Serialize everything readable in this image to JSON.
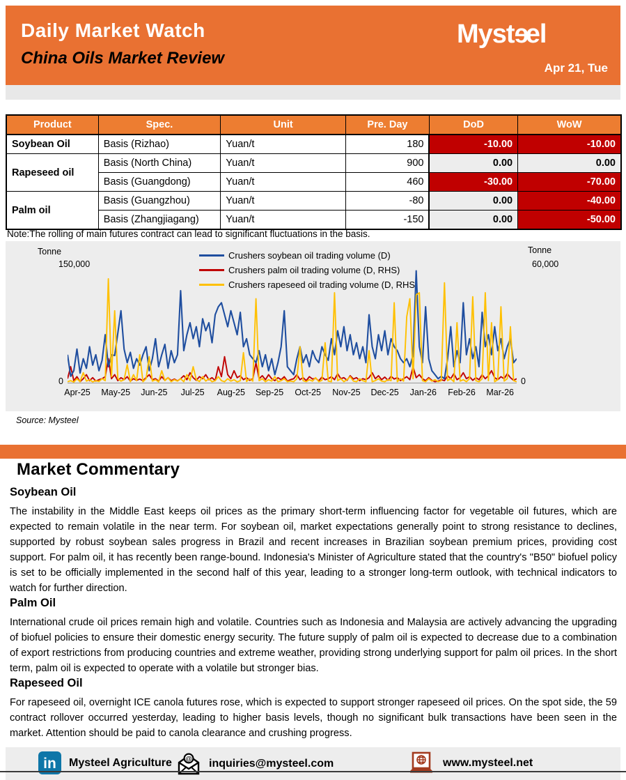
{
  "header": {
    "title": "Daily Market Watch",
    "subtitle": "China Oils Market Review",
    "date": "Apr 21, Tue",
    "brand": "Mysteel",
    "logo_parts": {
      "p1": "Myst",
      "e1": "ɘ",
      "e2": "e",
      "p2": "l"
    }
  },
  "table": {
    "headers": [
      "Product",
      "Spec.",
      "Unit",
      "Pre. Day",
      "DoD",
      "WoW"
    ],
    "rows": [
      {
        "product": "Soybean Oil",
        "spec": "Basis (Rizhao)",
        "unit": "Yuan/t",
        "pre_day": "180",
        "dod": "-10.00",
        "dod_state": "neg",
        "wow": "-10.00",
        "wow_state": "neg"
      },
      {
        "product": "Rapeseed oil",
        "spec": "Basis (North China)",
        "unit": "Yuan/t",
        "pre_day": "900",
        "dod": "0.00",
        "dod_state": "zero",
        "wow": "0.00",
        "wow_state": "zero"
      },
      {
        "spec": "Basis (Guangdong)",
        "unit": "Yuan/t",
        "pre_day": "460",
        "dod": "-30.00",
        "dod_state": "neg",
        "wow": "-70.00",
        "wow_state": "neg"
      },
      {
        "product": "Palm oil",
        "spec": "Basis (Guangzhou)",
        "unit": "Yuan/t",
        "pre_day": "-80",
        "dod": "0.00",
        "dod_state": "zero",
        "wow": "-40.00",
        "wow_state": "neg"
      },
      {
        "spec": "Basis (Zhangjiagang)",
        "unit": "Yuan/t",
        "pre_day": "-150",
        "dod": "0.00",
        "dod_state": "zero",
        "wow": "-50.00",
        "wow_state": "neg"
      }
    ]
  },
  "note": "Note:The rolling of main futures contract can lead to significant fluctuations in the basis.",
  "chart_data": {
    "type": "line",
    "left_axis": {
      "unit": "Tonne",
      "max": 150000,
      "max_label": "150,000",
      "zero_label": "0"
    },
    "right_axis": {
      "unit": "Tonne",
      "max": 60000,
      "max_label": "60,000",
      "zero_label": "0"
    },
    "categories": [
      "Apr-25",
      "May-25",
      "Jun-25",
      "Jul-25",
      "Aug-25",
      "Sep-25",
      "Oct-25",
      "Nov-25",
      "Dec-25",
      "Jan-26",
      "Feb-26",
      "Mar-26"
    ],
    "points_per_month": 12,
    "grid": false,
    "legend_position": "top-center",
    "series": [
      {
        "name": "Crushers soybean oil trading volume (D)",
        "axis": "left",
        "color": "#1F4E9F",
        "values": [
          35000,
          8000,
          15000,
          42000,
          12000,
          30000,
          18000,
          45000,
          22000,
          35000,
          15000,
          28000,
          60000,
          20000,
          35000,
          34000,
          62000,
          90000,
          42000,
          25000,
          38000,
          18000,
          30000,
          22000,
          35000,
          45000,
          15000,
          30000,
          55000,
          20000,
          35000,
          48000,
          18000,
          40000,
          25000,
          35000,
          115000,
          40000,
          60000,
          75000,
          55000,
          70000,
          45000,
          80000,
          65000,
          75000,
          50000,
          85000,
          95000,
          100000,
          85000,
          70000,
          90000,
          75000,
          60000,
          88000,
          45000,
          55000,
          35000,
          30000,
          25000,
          40000,
          20000,
          35000,
          15000,
          30000,
          10000,
          25000,
          45000,
          90000,
          20000,
          15000,
          10000,
          30000,
          45000,
          25000,
          35000,
          20000,
          40000,
          30000,
          25000,
          45000,
          35000,
          28000,
          55000,
          35000,
          65000,
          45000,
          70000,
          40000,
          60000,
          35000,
          50000,
          30000,
          45000,
          25000,
          85000,
          45000,
          30000,
          60000,
          40000,
          65000,
          35000,
          55000,
          45000,
          40000,
          30000,
          25000,
          30000,
          20000,
          35000,
          140000,
          45000,
          25000,
          95000,
          30000,
          15000,
          10000,
          5000,
          8000,
          5000,
          30000,
          70000,
          20000,
          40000,
          25000,
          100000,
          35000,
          55000,
          30000,
          45000,
          20000,
          88000,
          45000,
          60000,
          35000,
          70000,
          40000,
          55000,
          30000,
          45000,
          55000,
          25000,
          30000
        ]
      },
      {
        "name": "Crushers palm oil trading volume (D, RHS)",
        "axis": "right",
        "color": "#C00000",
        "values": [
          2000,
          8000,
          1000,
          3000,
          500,
          2000,
          4000,
          1000,
          2500,
          800,
          1500,
          2000,
          3000,
          12000,
          2000,
          4000,
          1000,
          2500,
          1500,
          3000,
          800,
          2000,
          1200,
          1800,
          1000,
          2500,
          4000,
          1500,
          2000,
          800,
          3000,
          1200,
          2500,
          1000,
          1800,
          900,
          2000,
          3500,
          1500,
          5000,
          2500,
          1200,
          3000,
          2000,
          4000,
          1500,
          2500,
          1000,
          8000,
          3000,
          13000,
          4000,
          2000,
          6000,
          2500,
          3500,
          1500,
          2500,
          1200,
          2000,
          10000,
          2000,
          3500,
          1500,
          4000,
          2000,
          1000,
          2500,
          1500,
          3000,
          800,
          1500,
          2000,
          4000,
          1500,
          2500,
          1000,
          3000,
          1800,
          2200,
          900,
          2800,
          1500,
          2000,
          3000,
          1500,
          4500,
          2000,
          2500,
          1200,
          3500,
          1800,
          2500,
          1000,
          2000,
          1500,
          2500,
          5000,
          2000,
          3500,
          1500,
          2800,
          1200,
          3200,
          1800,
          2500,
          1000,
          2000,
          3000,
          1500,
          8000,
          2500,
          4000,
          2000,
          1000,
          2500,
          1200,
          500,
          800,
          1500,
          1000,
          3500,
          2000,
          4500,
          1500,
          2500,
          5000,
          2000,
          3000,
          1200,
          2500,
          1500,
          4000,
          2000,
          3500,
          6000,
          2500,
          1500,
          3000,
          2000,
          4500,
          2500,
          1200,
          2000
        ]
      },
      {
        "name": "Crushers rapeseed oil trading volume (D, RHS)",
        "axis": "right",
        "color": "#FFC000",
        "values": [
          500,
          1000,
          300,
          2000,
          500,
          5000,
          800,
          1500,
          400,
          1000,
          600,
          2000,
          1000,
          52000,
          3000,
          36000,
          2000,
          800,
          1500,
          9000,
          500,
          4000,
          1000,
          14000,
          500,
          2000,
          13000,
          800,
          1500,
          400,
          6000,
          1000,
          2500,
          500,
          1500,
          800,
          2000,
          500,
          4000,
          1000,
          8000,
          1500,
          600,
          3000,
          800,
          2000,
          500,
          1000,
          3000,
          1000,
          500,
          2000,
          800,
          1500,
          400,
          1000,
          15000,
          600,
          2000,
          800,
          42000,
          1000,
          2000,
          500,
          1500,
          800,
          3000,
          500,
          1000,
          2000,
          500,
          800,
          500,
          2000,
          18000,
          1000,
          500,
          1500,
          800,
          2500,
          500,
          1200,
          20000,
          800,
          500,
          45000,
          1000,
          2000,
          500,
          1500,
          3000,
          800,
          500,
          2000,
          1000,
          500,
          16000,
          500,
          1000,
          2000,
          800,
          500,
          1500,
          1000,
          40000,
          500,
          2000,
          800,
          33000,
          42000,
          2000,
          44000,
          45000,
          1000,
          500,
          2000,
          800,
          1500,
          500,
          1000,
          50000,
          1000,
          2000,
          500,
          30000,
          800,
          1500,
          500,
          2000,
          43000,
          1000,
          500,
          2000,
          45000,
          1000,
          30000,
          500,
          1500,
          38000,
          800,
          2000,
          28000,
          1000,
          500
        ]
      }
    ]
  },
  "source": "Source: Mysteel",
  "commentary": {
    "title": "Market Commentary",
    "sections": [
      {
        "heading": "Soybean Oil",
        "text": "The instability in the Middle East keeps oil prices as the primary short-term influencing factor for vegetable oil futures, which are expected to remain volatile in the near term. For soybean oil, market expectations generally point to strong resistance to declines, supported by robust soybean sales progress in Brazil and recent increases in Brazilian soybean premium prices, providing cost support. For palm oil, it has recently been range-bound. Indonesia's Minister of Agriculture stated that the country's \"B50\" biofuel policy is set to be officially implemented in the second half of this year, leading to a stronger long-term outlook, with technical indicators to watch for further direction."
      },
      {
        "heading": "Palm Oil",
        "text": "International crude oil prices remain high and volatile. Countries such as Indonesia and Malaysia are actively advancing the upgrading of biofuel policies to ensure their domestic energy security. The future supply of palm oil is expected to decrease due to a combination of export restrictions from producing countries and extreme weather, providing strong underlying support for palm oil prices. In the short term, palm oil is expected to operate with a volatile but stronger bias."
      },
      {
        "heading": "Rapeseed  Oil",
        "text": "For rapeseed oil, overnight ICE canola futures rose, which is expected to support stronger rapeseed oil prices. On the spot side, the 59 contract rollover occurred yesterday, leading to higher basis levels, though no significant bulk transactions have been seen in the market. Attention should be paid to canola clearance and crushing progress."
      }
    ]
  },
  "footer": {
    "linkedin_label": "Mysteel Agriculture",
    "email": "inquiries@mysteel.com",
    "website": "www.mysteel.net"
  }
}
